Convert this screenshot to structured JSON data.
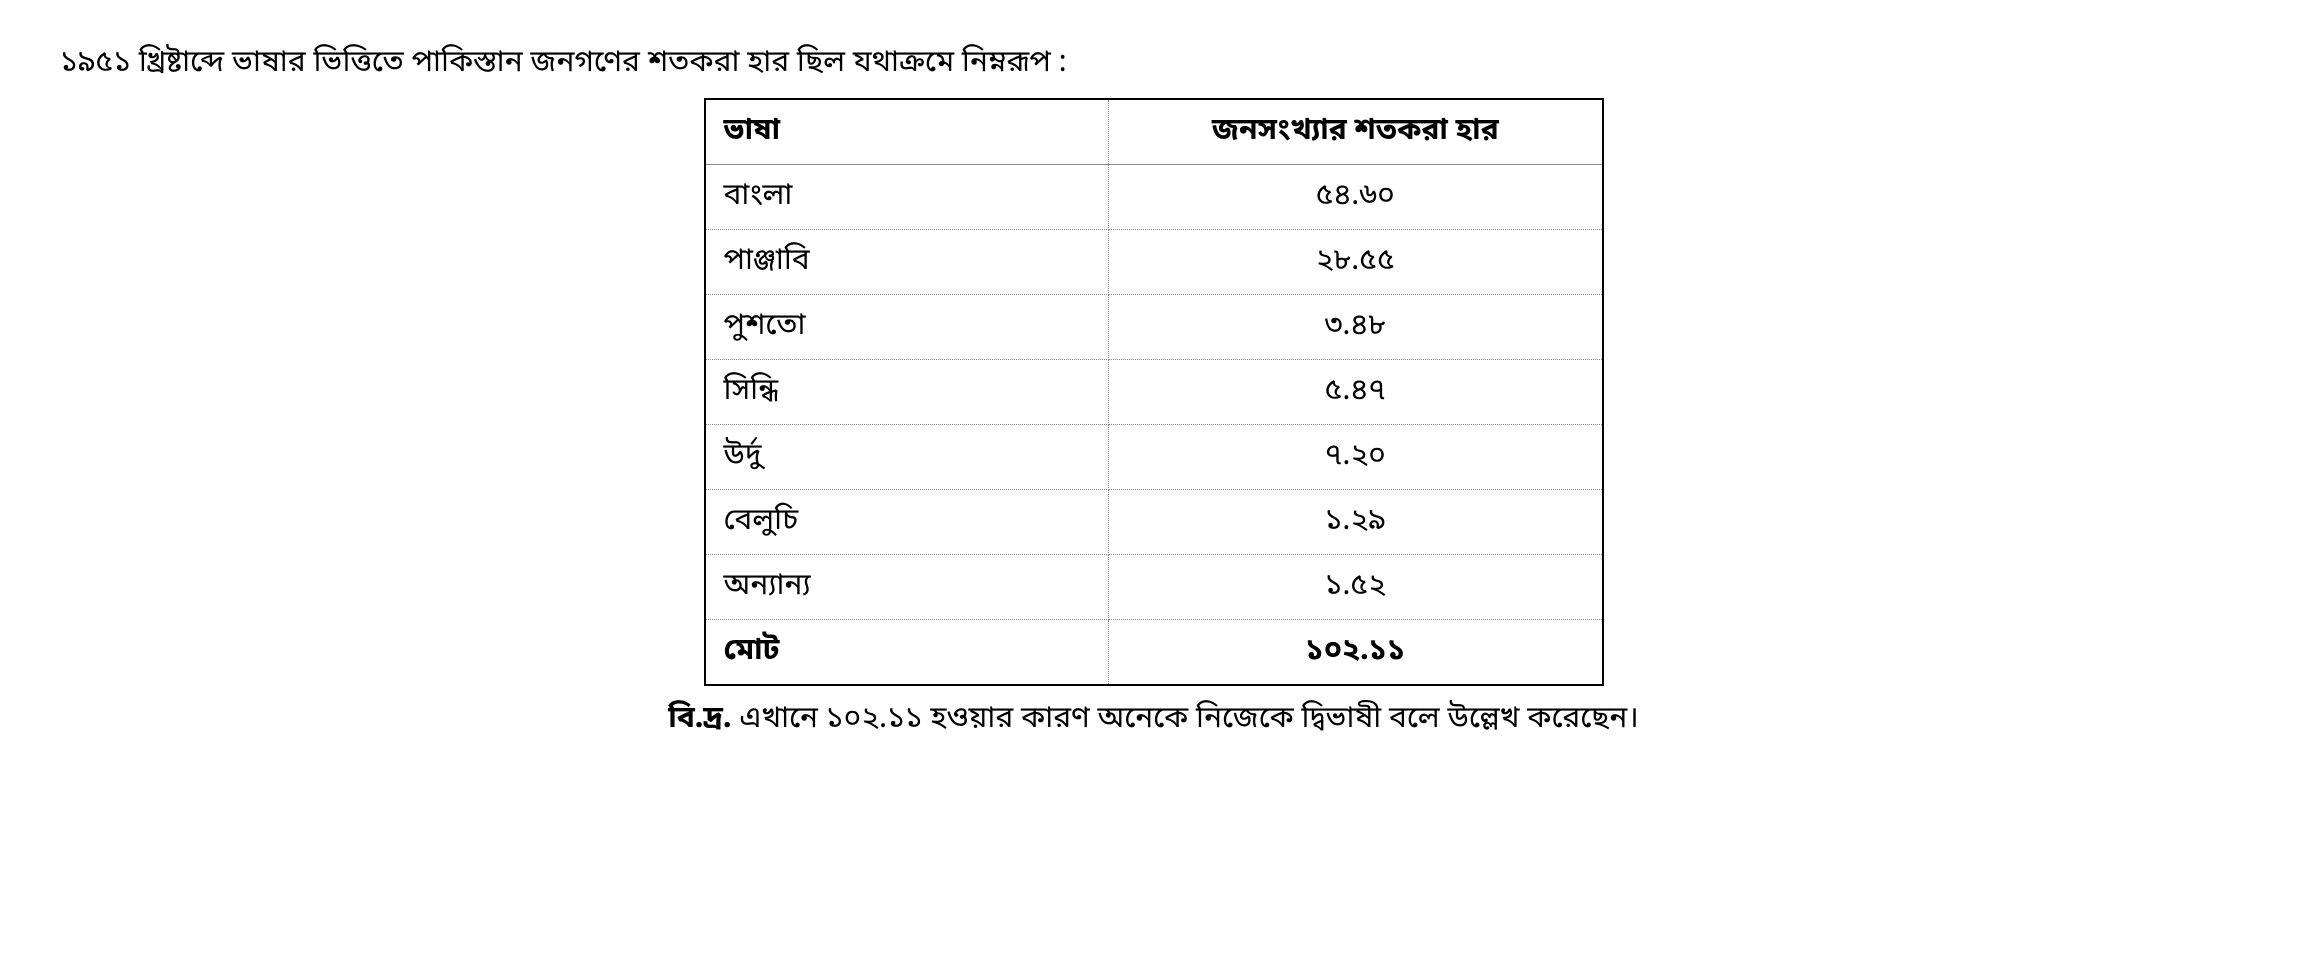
{
  "intro_text": "১৯৫১ খ্রিষ্টাব্দে ভাষার ভিত্তিতে পাকিস্তান জনগণের শতকরা হার ছিল যথাক্রমে নিম্নরূপ :",
  "table": {
    "columns": [
      "ভাষা",
      "জনসংখ্যার শতকরা হার"
    ],
    "rows": [
      [
        "বাংলা",
        "৫৪.৬০"
      ],
      [
        "পাঞ্জাবি",
        "২৮.৫৫"
      ],
      [
        "পুশতো",
        "৩.৪৮"
      ],
      [
        "সিন্ধি",
        "৫.৪৭"
      ],
      [
        "উর্দু",
        "৭.২০"
      ],
      [
        "বেলুচি",
        "১.২৯"
      ],
      [
        "অন্যান্য",
        "১.৫২"
      ],
      [
        "মোট",
        "১০২.১১"
      ]
    ],
    "border_color": "#888888",
    "outer_border_color": "#000000",
    "background_color": "#ffffff",
    "text_color": "#000000",
    "header_fontweight": "bold",
    "total_row_fontweight": "bold",
    "col_widths": [
      "45%",
      "55%"
    ],
    "col_align": [
      "left",
      "center"
    ],
    "fontsize": 30
  },
  "footnote": {
    "lead": "বি.দ্র.",
    "text": " এখানে ১০২.১১ হওয়ার কারণ অনেকে নিজেকে দ্বিভাষী বলে উল্লেখ করেছেন।"
  }
}
